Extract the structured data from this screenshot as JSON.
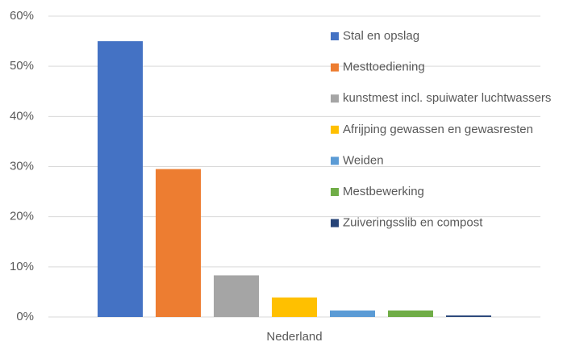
{
  "chart_data": {
    "type": "bar",
    "categories": [
      "Nederland"
    ],
    "series": [
      {
        "name": "Stal en opslag",
        "color": "#4472c4",
        "values": [
          55
        ]
      },
      {
        "name": "Mesttoediening",
        "color": "#ed7d31",
        "values": [
          29.5
        ]
      },
      {
        "name": "kunstmest incl. spuiwater luchtwassers",
        "color": "#a5a5a5",
        "values": [
          8.3
        ]
      },
      {
        "name": "Afrijping gewassen en gewasresten",
        "color": "#ffc000",
        "values": [
          3.9
        ]
      },
      {
        "name": "Weiden",
        "color": "#5b9bd5",
        "values": [
          1.3
        ]
      },
      {
        "name": "Mestbewerking",
        "color": "#70ad47",
        "values": [
          1.3
        ]
      },
      {
        "name": "Zuiveringsslib en compost",
        "color": "#264478",
        "values": [
          0.3
        ]
      }
    ],
    "ylim": [
      0,
      60
    ],
    "yticks": [
      {
        "value": 0,
        "label": "0%"
      },
      {
        "value": 10,
        "label": "10%"
      },
      {
        "value": 20,
        "label": "20%"
      },
      {
        "value": 30,
        "label": "30%"
      },
      {
        "value": 40,
        "label": "40%"
      },
      {
        "value": 50,
        "label": "50%"
      },
      {
        "value": 60,
        "label": "60%"
      }
    ],
    "grid": true,
    "legend": "upper right"
  }
}
